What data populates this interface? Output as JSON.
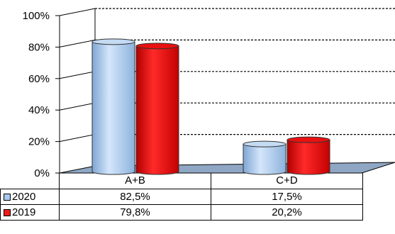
{
  "chart_data": {
    "type": "bar",
    "categories": [
      "A+B",
      "C+D"
    ],
    "series": [
      {
        "name": "2020",
        "values": [
          82.5,
          17.5
        ],
        "labels": [
          "82,5%",
          "17,5%"
        ],
        "color": "#a9c9ee"
      },
      {
        "name": "2019",
        "values": [
          79.8,
          20.2
        ],
        "labels": [
          "79,8%",
          "20,2%"
        ],
        "color": "#ee1c1c"
      }
    ],
    "yticks": [
      "0%",
      "20%",
      "40%",
      "60%",
      "80%",
      "100%"
    ],
    "ylim": [
      0,
      100
    ],
    "grid": "dashed",
    "legend": "data-table",
    "style": "3d-cylinder"
  }
}
